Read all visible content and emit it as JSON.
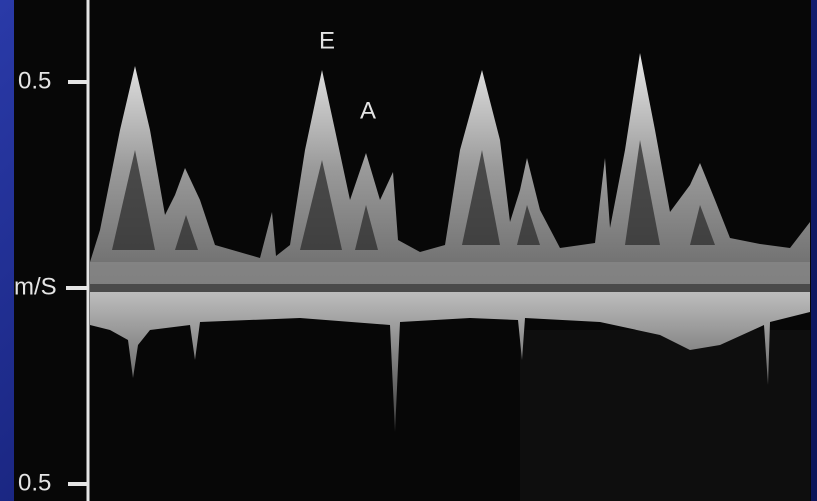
{
  "axis": {
    "top_label": "0.5",
    "mid_label": "m/S",
    "bottom_label": "0.5"
  },
  "annotations": {
    "e_wave": "E",
    "a_wave": "A"
  }
}
